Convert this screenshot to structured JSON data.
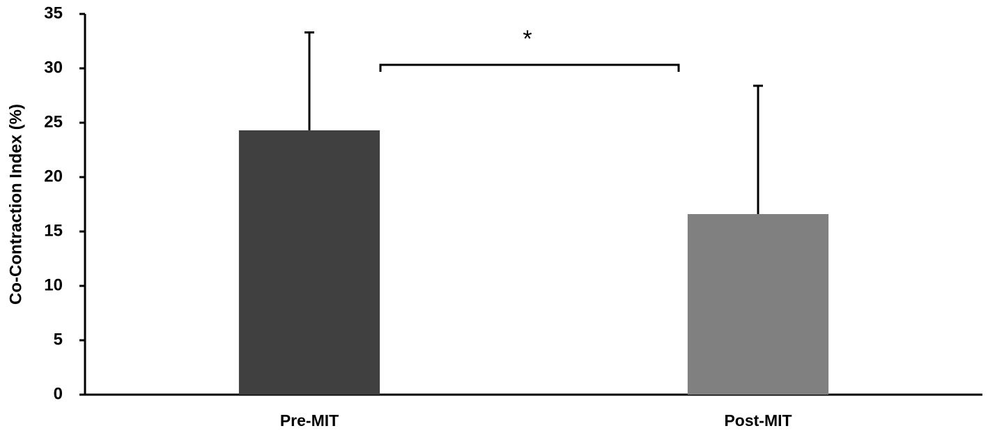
{
  "chart_data": {
    "type": "bar",
    "y_label": "Co-Contraction Index (%)",
    "categories": [
      "Pre-MIT",
      "Post-MIT"
    ],
    "values": [
      24.3,
      16.6
    ],
    "errors": [
      9.0,
      11.8
    ],
    "colors": [
      "#404040",
      "#808080"
    ],
    "ylim": [
      0,
      35
    ],
    "yticks": [
      0,
      5,
      10,
      15,
      20,
      25,
      30,
      35
    ],
    "grid": false,
    "annotation": "*"
  }
}
